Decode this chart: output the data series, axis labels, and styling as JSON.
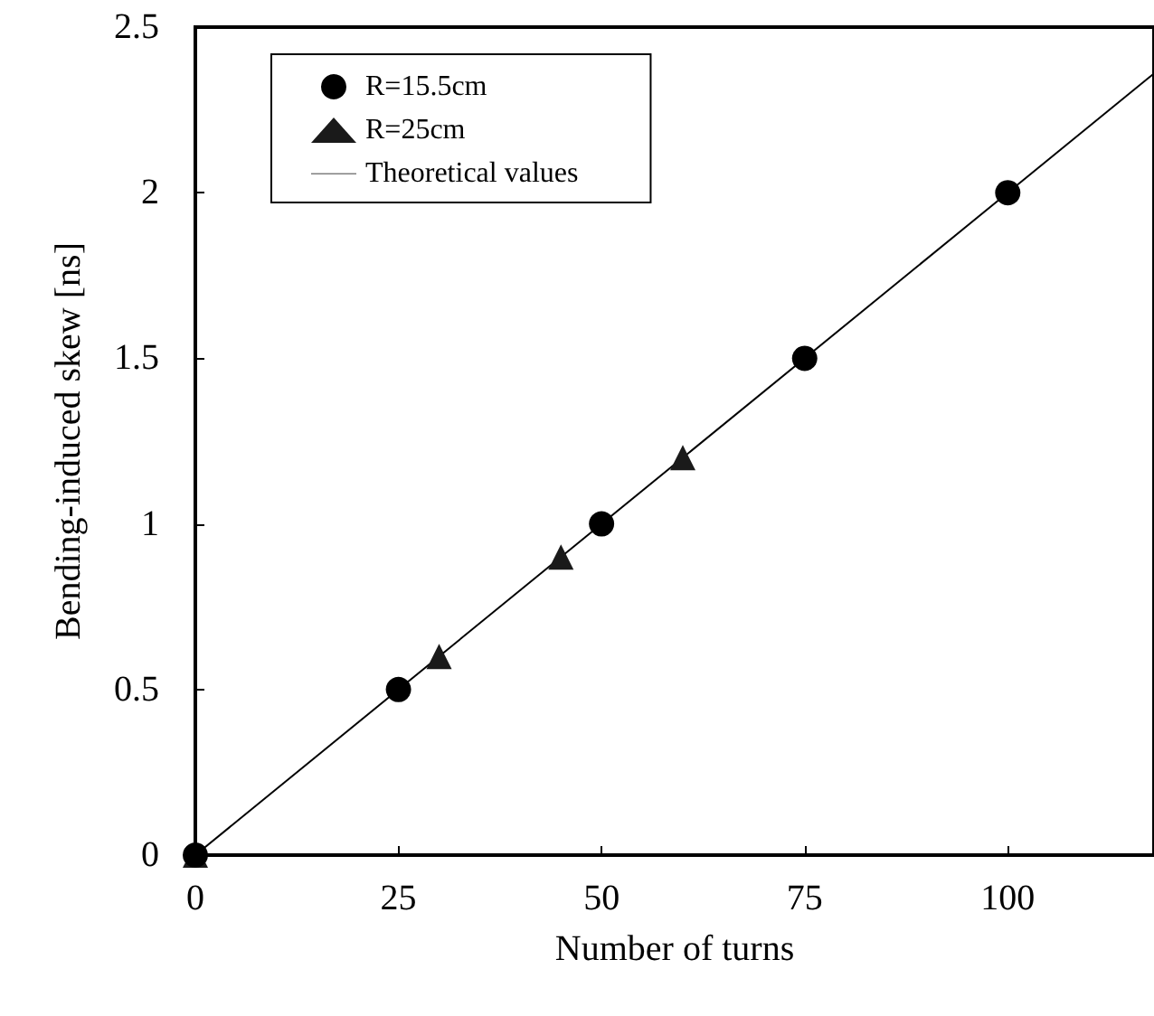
{
  "chart_data": {
    "type": "scatter",
    "xlabel": "Number of turns",
    "ylabel": "Bending-induced skew [ns]",
    "xlim": [
      0,
      118
    ],
    "xticks": [
      0,
      25,
      50,
      75,
      100
    ],
    "ylim": [
      0,
      2.5
    ],
    "yticks": [
      0,
      0.5,
      1,
      1.5,
      2,
      2.5
    ],
    "grid": false,
    "legend": "top left",
    "series": [
      {
        "name": "R=15.5cm",
        "marker": "circle",
        "color": "#000000",
        "x": [
          0,
          25,
          50,
          75,
          100
        ],
        "values": [
          0,
          0.5,
          1,
          1.5,
          2
        ]
      },
      {
        "name": "R=25cm",
        "marker": "triangle",
        "color": "#1a1a1a",
        "x": [
          0,
          30,
          45,
          60
        ],
        "values": [
          0,
          0.6,
          0.9,
          1.2
        ]
      },
      {
        "name": "Theoretical values",
        "type": "line",
        "marker": "none",
        "line_style": "solid",
        "color": "#000000",
        "x": [
          0,
          118
        ],
        "values": [
          0,
          2.36
        ]
      }
    ]
  }
}
